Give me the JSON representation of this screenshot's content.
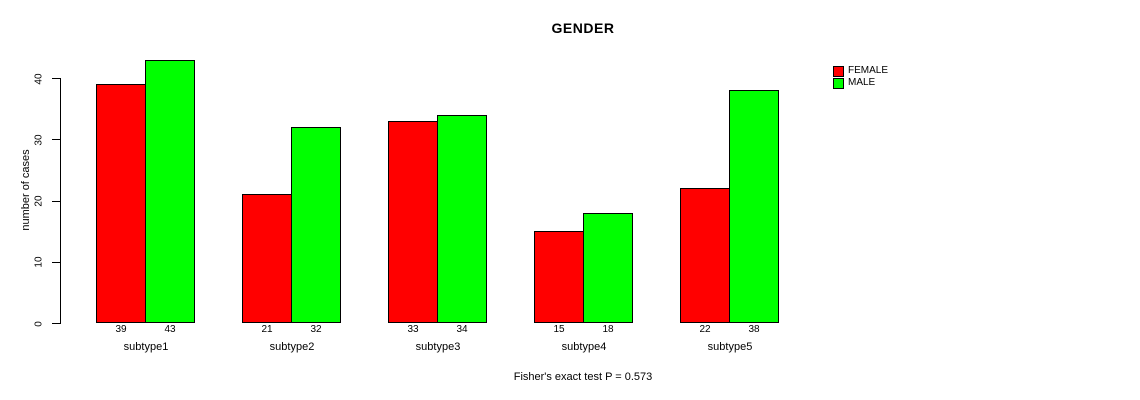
{
  "chart_data": {
    "type": "bar",
    "title": "GENDER",
    "categories": [
      "subtype1",
      "subtype2",
      "subtype3",
      "subtype4",
      "subtype5"
    ],
    "series": [
      {
        "name": "FEMALE",
        "color": "#ff0000",
        "values": [
          39,
          21,
          33,
          15,
          22
        ]
      },
      {
        "name": "MALE",
        "color": "#00ff00",
        "values": [
          43,
          32,
          34,
          18,
          38
        ]
      }
    ],
    "xlabel": "",
    "ylabel": "number of cases",
    "ylim": [
      0,
      40
    ],
    "yticks": [
      0,
      10,
      20,
      30,
      40
    ],
    "bar_value_labels": true,
    "grid": false,
    "legend_position": "top-right",
    "caption": "Fisher's exact test P = 0.573",
    "bar_border_color": "#000000",
    "axis_color": "#000000",
    "background": "#ffffff",
    "text_color": "#000000"
  }
}
